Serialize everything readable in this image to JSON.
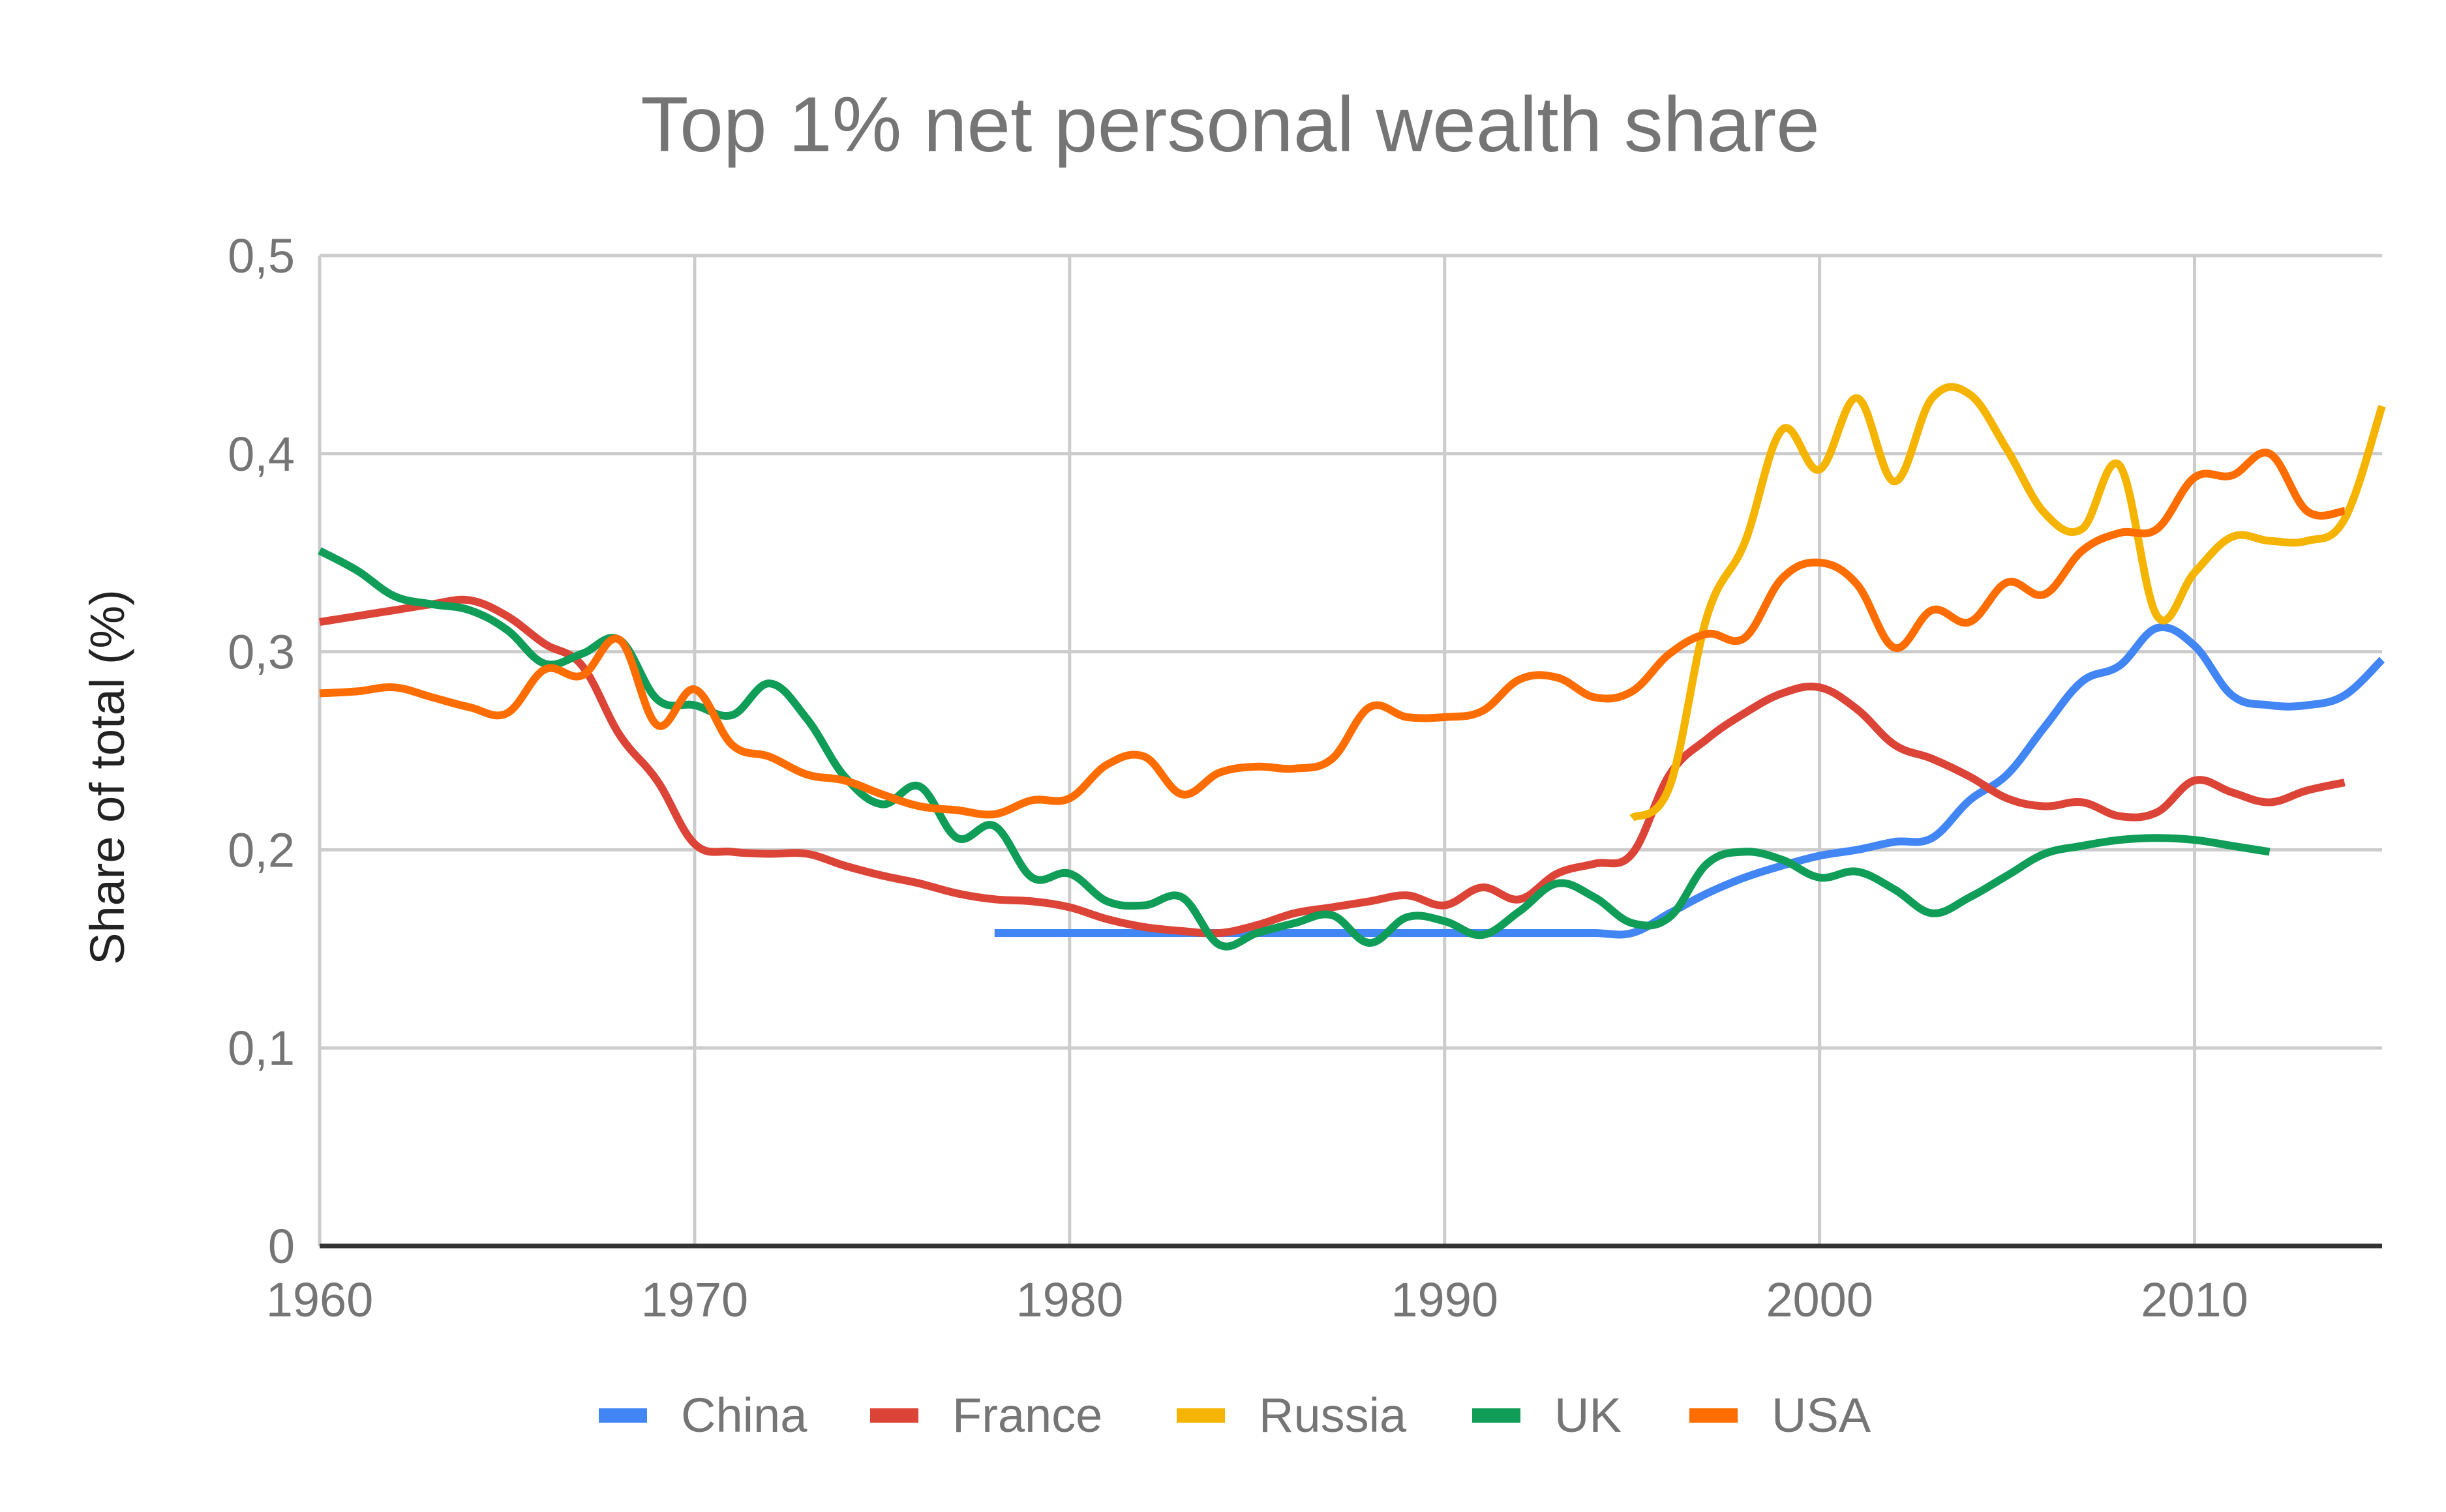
{
  "chart_data": {
    "type": "line",
    "title": "Top 1% net personal wealth share",
    "xlabel": "",
    "ylabel": "Share of total (%)",
    "xlim": [
      1960,
      2015
    ],
    "ylim": [
      0,
      0.5
    ],
    "x_ticks": [
      "1960",
      "1970",
      "1980",
      "1990",
      "2000",
      "2010"
    ],
    "y_ticks": [
      "0",
      "0,1",
      "0,2",
      "0,3",
      "0,4",
      "0,5"
    ],
    "grid": true,
    "legend_position": "bottom",
    "series": [
      {
        "name": "China",
        "color": "#4285F4",
        "start_year": 1978,
        "values": [
          0.158,
          0.158,
          0.158,
          0.158,
          0.158,
          0.158,
          0.158,
          0.158,
          0.158,
          0.158,
          0.158,
          0.158,
          0.158,
          0.158,
          0.158,
          0.158,
          0.158,
          0.158,
          0.168,
          0.178,
          0.186,
          0.192,
          0.197,
          0.2,
          0.204,
          0.206,
          0.225,
          0.238,
          0.262,
          0.285,
          0.293,
          0.312,
          0.303,
          0.278,
          0.273,
          0.273,
          0.278,
          0.296
        ]
      },
      {
        "name": "France",
        "color": "#DB4437",
        "start_year": 1960,
        "values": [
          0.315,
          0.318,
          0.321,
          0.324,
          0.326,
          0.318,
          0.304,
          0.293,
          0.258,
          0.235,
          0.203,
          0.199,
          0.198,
          0.198,
          0.192,
          0.187,
          0.183,
          0.178,
          0.175,
          0.174,
          0.171,
          0.165,
          0.161,
          0.159,
          0.158,
          0.162,
          0.168,
          0.171,
          0.174,
          0.177,
          0.172,
          0.181,
          0.175,
          0.188,
          0.193,
          0.198,
          0.238,
          0.256,
          0.269,
          0.279,
          0.282,
          0.271,
          0.253,
          0.246,
          0.237,
          0.226,
          0.222,
          0.224,
          0.217,
          0.219,
          0.235,
          0.229,
          0.224,
          0.23,
          0.234
        ]
      },
      {
        "name": "Russia",
        "color": "#F4B400",
        "start_year": 1995,
        "values": [
          0.216,
          0.232,
          0.318,
          0.355,
          0.412,
          0.392,
          0.428,
          0.386,
          0.428,
          0.43,
          0.402,
          0.37,
          0.362,
          0.394,
          0.318,
          0.34,
          0.358,
          0.356,
          0.356,
          0.367,
          0.424
        ]
      },
      {
        "name": "UK",
        "color": "#0F9D58",
        "start_year": 1960,
        "values": [
          0.351,
          0.341,
          0.328,
          0.324,
          0.321,
          0.311,
          0.294,
          0.299,
          0.306,
          0.276,
          0.273,
          0.268,
          0.284,
          0.266,
          0.237,
          0.223,
          0.232,
          0.206,
          0.212,
          0.186,
          0.188,
          0.174,
          0.172,
          0.176,
          0.152,
          0.158,
          0.163,
          0.167,
          0.153,
          0.166,
          0.164,
          0.157,
          0.169,
          0.183,
          0.176,
          0.163,
          0.166,
          0.193,
          0.199,
          0.195,
          0.186,
          0.189,
          0.18,
          0.168,
          0.176,
          0.187,
          0.198,
          0.202,
          0.205,
          0.206,
          0.205,
          0.202,
          0.199
        ]
      },
      {
        "name": "USA",
        "color": "#FF6D00",
        "start_year": 1960,
        "values": [
          0.279,
          0.28,
          0.282,
          0.277,
          0.272,
          0.269,
          0.291,
          0.288,
          0.306,
          0.263,
          0.281,
          0.253,
          0.247,
          0.238,
          0.235,
          0.228,
          0.222,
          0.22,
          0.218,
          0.225,
          0.226,
          0.243,
          0.247,
          0.228,
          0.239,
          0.242,
          0.241,
          0.246,
          0.272,
          0.267,
          0.267,
          0.27,
          0.286,
          0.287,
          0.277,
          0.28,
          0.299,
          0.309,
          0.307,
          0.337,
          0.345,
          0.334,
          0.302,
          0.321,
          0.315,
          0.335,
          0.329,
          0.351,
          0.36,
          0.362,
          0.388,
          0.389,
          0.4,
          0.371,
          0.371
        ]
      }
    ]
  }
}
